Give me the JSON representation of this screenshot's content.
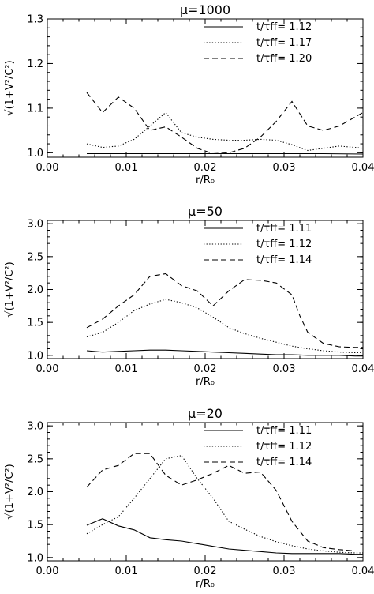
{
  "chart_data": [
    {
      "type": "line",
      "title": "μ=1000",
      "xlabel": "r/R₀",
      "ylabel": "√(1+V²/C²)",
      "xlim": [
        0,
        0.04
      ],
      "ylim": [
        0.99,
        1.3
      ],
      "xticks": [
        "0.00",
        "0.01",
        "0.02",
        "0.03",
        "0.04"
      ],
      "yticks": [
        "1.0",
        "1.1",
        "1.2",
        "1.3"
      ],
      "ytick_values": [
        1.0,
        1.1,
        1.2,
        1.3
      ],
      "legend_position": "top-right",
      "series": [
        {
          "name": "t/τff= 1.12",
          "dash": "solid",
          "x": [
            0.005,
            0.01,
            0.015,
            0.02,
            0.025,
            0.03,
            0.035,
            0.04
          ],
          "y": [
            0.998,
            0.998,
            0.998,
            0.998,
            0.998,
            0.998,
            0.998,
            0.997
          ]
        },
        {
          "name": "t/τff= 1.17",
          "dash": "dotted",
          "x": [
            0.005,
            0.007,
            0.009,
            0.011,
            0.013,
            0.015,
            0.017,
            0.019,
            0.021,
            0.023,
            0.025,
            0.027,
            0.029,
            0.031,
            0.033,
            0.035,
            0.037,
            0.039,
            0.04
          ],
          "y": [
            1.02,
            1.012,
            1.015,
            1.03,
            1.06,
            1.09,
            1.045,
            1.035,
            1.03,
            1.028,
            1.028,
            1.03,
            1.028,
            1.018,
            1.005,
            1.01,
            1.015,
            1.012,
            1.01
          ]
        },
        {
          "name": "t/τff= 1.20",
          "dash": "dashed",
          "x": [
            0.005,
            0.007,
            0.009,
            0.011,
            0.013,
            0.015,
            0.017,
            0.019,
            0.021,
            0.023,
            0.025,
            0.027,
            0.029,
            0.031,
            0.033,
            0.035,
            0.037,
            0.039,
            0.04
          ],
          "y": [
            1.135,
            1.09,
            1.125,
            1.1,
            1.05,
            1.058,
            1.035,
            1.01,
            0.998,
            1.0,
            1.01,
            1.035,
            1.07,
            1.115,
            1.06,
            1.05,
            1.06,
            1.08,
            1.09
          ]
        }
      ]
    },
    {
      "type": "line",
      "title": "μ=50",
      "xlabel": "r/R₀",
      "ylabel": "√(1+V²/C²)",
      "xlim": [
        0,
        0.04
      ],
      "ylim": [
        0.95,
        3.05
      ],
      "xticks": [
        "0.00",
        "0.01",
        "0.02",
        "0.03",
        "0.04"
      ],
      "yticks": [
        "1.0",
        "1.5",
        "2.0",
        "2.5",
        "3.0"
      ],
      "ytick_values": [
        1.0,
        1.5,
        2.0,
        2.5,
        3.0
      ],
      "legend_position": "top-right",
      "series": [
        {
          "name": "t/τff= 1.11",
          "dash": "solid",
          "x": [
            0.005,
            0.007,
            0.009,
            0.011,
            0.013,
            0.015,
            0.017,
            0.019,
            0.021,
            0.023,
            0.025,
            0.027,
            0.029,
            0.031,
            0.033,
            0.035,
            0.037,
            0.039,
            0.04
          ],
          "y": [
            1.07,
            1.05,
            1.06,
            1.07,
            1.08,
            1.08,
            1.07,
            1.06,
            1.05,
            1.04,
            1.03,
            1.02,
            1.01,
            1.01,
            1.0,
            1.0,
            1.0,
            0.99,
            0.99
          ]
        },
        {
          "name": "t/τff= 1.12",
          "dash": "dotted",
          "x": [
            0.005,
            0.007,
            0.009,
            0.011,
            0.013,
            0.015,
            0.017,
            0.019,
            0.021,
            0.023,
            0.025,
            0.027,
            0.029,
            0.031,
            0.033,
            0.035,
            0.037,
            0.039,
            0.04
          ],
          "y": [
            1.28,
            1.35,
            1.5,
            1.68,
            1.78,
            1.85,
            1.8,
            1.72,
            1.58,
            1.42,
            1.33,
            1.26,
            1.2,
            1.14,
            1.1,
            1.07,
            1.05,
            1.04,
            1.04
          ]
        },
        {
          "name": "t/τff= 1.14",
          "dash": "dashed",
          "x": [
            0.005,
            0.007,
            0.009,
            0.011,
            0.013,
            0.015,
            0.017,
            0.019,
            0.021,
            0.023,
            0.025,
            0.027,
            0.029,
            0.031,
            0.032,
            0.033,
            0.035,
            0.037,
            0.039,
            0.04
          ],
          "y": [
            1.42,
            1.55,
            1.75,
            1.92,
            2.2,
            2.24,
            2.06,
            1.98,
            1.75,
            1.98,
            2.15,
            2.14,
            2.1,
            1.92,
            1.6,
            1.35,
            1.18,
            1.13,
            1.12,
            1.12
          ]
        }
      ]
    },
    {
      "type": "line",
      "title": "μ=20",
      "xlabel": "r/R₀",
      "ylabel": "√(1+V²/C²)",
      "xlim": [
        0,
        0.04
      ],
      "ylim": [
        0.95,
        3.05
      ],
      "xticks": [
        "0.00",
        "0.01",
        "0.02",
        "0.03",
        "0.04"
      ],
      "yticks": [
        "1.0",
        "1.5",
        "2.0",
        "2.5",
        "3.0"
      ],
      "ytick_values": [
        1.0,
        1.5,
        2.0,
        2.5,
        3.0
      ],
      "legend_position": "top-right",
      "series": [
        {
          "name": "t/τff= 1.11",
          "dash": "solid",
          "x": [
            0.005,
            0.007,
            0.009,
            0.011,
            0.013,
            0.015,
            0.017,
            0.019,
            0.021,
            0.023,
            0.025,
            0.027,
            0.029,
            0.031,
            0.033,
            0.035,
            0.037,
            0.039,
            0.04
          ],
          "y": [
            1.49,
            1.59,
            1.48,
            1.42,
            1.3,
            1.27,
            1.25,
            1.21,
            1.17,
            1.13,
            1.11,
            1.09,
            1.07,
            1.06,
            1.06,
            1.06,
            1.06,
            1.05,
            1.05
          ]
        },
        {
          "name": "t/τff= 1.12",
          "dash": "dotted",
          "x": [
            0.005,
            0.007,
            0.009,
            0.011,
            0.013,
            0.015,
            0.017,
            0.019,
            0.021,
            0.023,
            0.025,
            0.027,
            0.029,
            0.031,
            0.033,
            0.035,
            0.037,
            0.039,
            0.04
          ],
          "y": [
            1.36,
            1.5,
            1.62,
            1.9,
            2.2,
            2.5,
            2.55,
            2.2,
            1.9,
            1.55,
            1.43,
            1.32,
            1.24,
            1.18,
            1.13,
            1.1,
            1.08,
            1.07,
            1.07
          ]
        },
        {
          "name": "t/τff= 1.14",
          "dash": "dashed",
          "x": [
            0.005,
            0.007,
            0.009,
            0.011,
            0.013,
            0.015,
            0.017,
            0.019,
            0.021,
            0.023,
            0.025,
            0.027,
            0.029,
            0.031,
            0.033,
            0.035,
            0.037,
            0.039,
            0.04
          ],
          "y": [
            2.07,
            2.33,
            2.4,
            2.58,
            2.58,
            2.25,
            2.1,
            2.18,
            2.28,
            2.4,
            2.28,
            2.3,
            2.02,
            1.55,
            1.25,
            1.15,
            1.12,
            1.1,
            1.1
          ]
        }
      ]
    }
  ]
}
